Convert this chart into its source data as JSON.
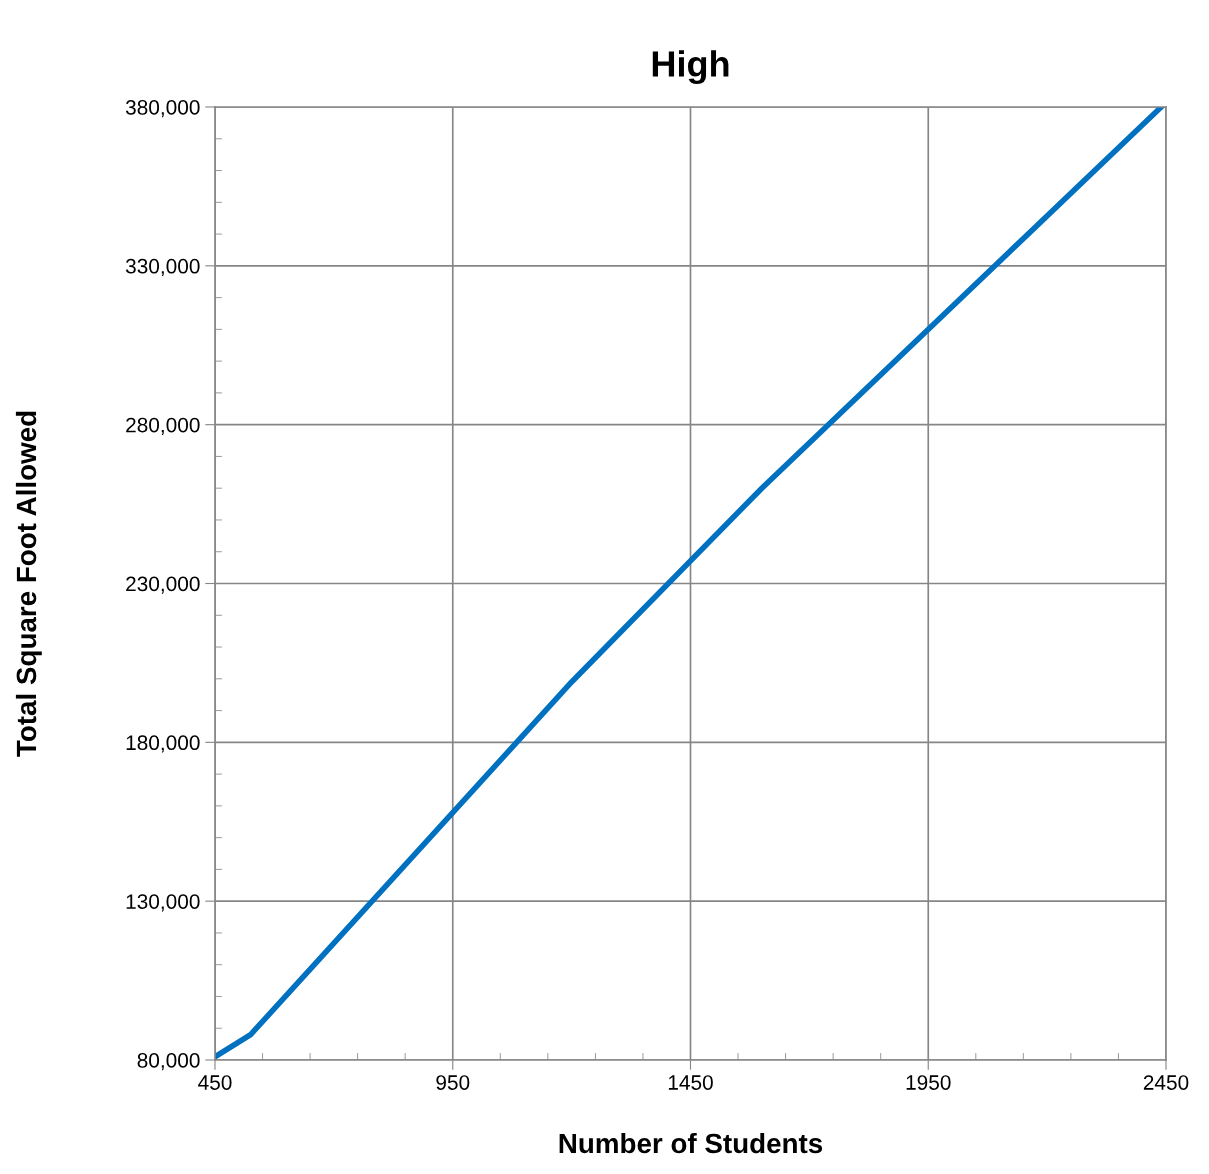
{
  "chart_data": {
    "type": "line",
    "title": "High",
    "xlabel": "Number of Students",
    "ylabel": "Total Square Foot Allowed",
    "x": [
      450,
      525,
      1200,
      1600,
      2440
    ],
    "series": [
      {
        "color": "#0070c0",
        "values": [
          81000,
          88000,
          199000,
          260000,
          380000
        ]
      }
    ],
    "xlim": [
      450,
      2450
    ],
    "ylim": [
      80000,
      380000
    ],
    "xticks": [
      450,
      {
        "value": 550,
        "label": null
      },
      {
        "value": 650,
        "label": null
      },
      {
        "value": 750,
        "label": null
      },
      {
        "value": 850,
        "label": null
      },
      950,
      {
        "value": 1050,
        "label": null
      },
      {
        "value": 1150,
        "label": null
      },
      {
        "value": 1250,
        "label": null
      },
      {
        "value": 1350,
        "label": null
      },
      1450,
      {
        "value": 1550,
        "label": null
      },
      {
        "value": 1650,
        "label": null
      },
      {
        "value": 1750,
        "label": null
      },
      {
        "value": 1850,
        "label": null
      },
      1950,
      {
        "value": 2050,
        "label": null
      },
      {
        "value": 2150,
        "label": null
      },
      {
        "value": 2250,
        "label": null
      },
      {
        "value": 2350,
        "label": null
      },
      2450
    ],
    "yticks": [
      {
        "value": 80000,
        "label": "80,000"
      },
      {
        "value": 90000,
        "label": null
      },
      {
        "value": 100000,
        "label": null
      },
      {
        "value": 110000,
        "label": null
      },
      {
        "value": 120000,
        "label": null
      },
      {
        "value": 130000,
        "label": "130,000"
      },
      {
        "value": 140000,
        "label": null
      },
      {
        "value": 150000,
        "label": null
      },
      {
        "value": 160000,
        "label": null
      },
      {
        "value": 170000,
        "label": null
      },
      {
        "value": 180000,
        "label": "180,000"
      },
      {
        "value": 190000,
        "label": null
      },
      {
        "value": 200000,
        "label": null
      },
      {
        "value": 210000,
        "label": null
      },
      {
        "value": 220000,
        "label": null
      },
      {
        "value": 230000,
        "label": "230,000"
      },
      {
        "value": 240000,
        "label": null
      },
      {
        "value": 250000,
        "label": null
      },
      {
        "value": 260000,
        "label": null
      },
      {
        "value": 270000,
        "label": null
      },
      {
        "value": 280000,
        "label": "280,000"
      },
      {
        "value": 290000,
        "label": null
      },
      {
        "value": 300000,
        "label": null
      },
      {
        "value": 310000,
        "label": null
      },
      {
        "value": 320000,
        "label": null
      },
      {
        "value": 330000,
        "label": "330,000"
      },
      {
        "value": 340000,
        "label": null
      },
      {
        "value": 350000,
        "label": null
      },
      {
        "value": 360000,
        "label": null
      },
      {
        "value": 370000,
        "label": null
      },
      {
        "value": 380000,
        "label": "380,000"
      }
    ],
    "grid": true,
    "legend": false,
    "marker": "none",
    "line_style": "solid"
  }
}
